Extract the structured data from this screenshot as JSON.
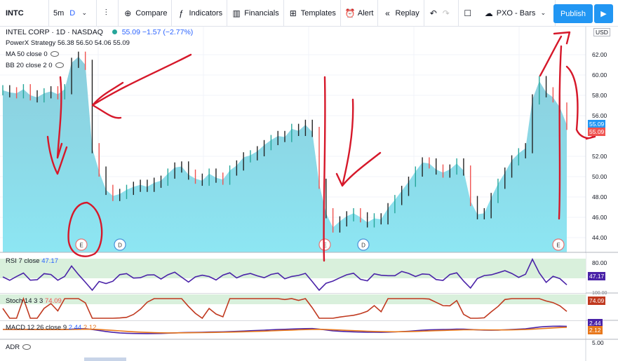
{
  "toolbar": {
    "symbol": "INTC",
    "interval": "5m",
    "interval_active": "D",
    "compare": "Compare",
    "indicators": "Indicators",
    "financials": "Financials",
    "templates": "Templates",
    "alert": "Alert",
    "replay": "Replay",
    "layout": "PXO - Bars",
    "publish": "Publish",
    "colors": {
      "accent": "#2196f3"
    }
  },
  "legend": {
    "title": "INTEL CORP · 1D · NASDAQ",
    "last": "55.09",
    "change": "−1.57 (−2.77%)",
    "strategy": "PowerX Strategy",
    "ohlc": "56.38 56.50 54.06 55.09",
    "ma": "MA 50 close 0",
    "bb": "BB 20 close 2 0"
  },
  "price_axis": {
    "currency": "USD",
    "ticks": [
      "62.00",
      "60.00",
      "58.00",
      "56.00",
      "52.00",
      "50.00",
      "48.00",
      "46.00",
      "44.00"
    ],
    "last_price": "55.09"
  },
  "events": [
    "E",
    "D",
    "E",
    "D",
    "E"
  ],
  "rsi": {
    "label": "RSI 7 close",
    "value": "47.17",
    "ticks": [
      "80.00",
      "47.17"
    ]
  },
  "stoch": {
    "label": "Stoch 14 3 3",
    "value": "74.09",
    "ticks": [
      "100.00",
      "74.09"
    ]
  },
  "macd": {
    "label": "MACD 12 26 close 9",
    "value1": "2.44",
    "value2": "2.12",
    "ticks": [
      "2.44",
      "2.12",
      "5.00"
    ]
  },
  "adr": {
    "label": "ADR"
  },
  "chart_data": {
    "type": "area",
    "series": [
      {
        "name": "INTC",
        "values": [
          58.5,
          58.3,
          58.2,
          58.6,
          58.0,
          57.8,
          58.2,
          58.4,
          58.1,
          58.6,
          61.2,
          61.8,
          61.0,
          52.8,
          50.5,
          48.7,
          48.1,
          48.3,
          48.7,
          49.0,
          49.2,
          49.0,
          49.4,
          49.6,
          50.3,
          50.9,
          51.0,
          50.2,
          49.8,
          49.6,
          50.3,
          49.9,
          49.7,
          50.6,
          51.1,
          51.9,
          52.1,
          52.5,
          53.1,
          53.6,
          54.0,
          53.9,
          54.7,
          54.5,
          55.1,
          54.4,
          49.3,
          46.4,
          45.0,
          45.6,
          46.1,
          46.4,
          46.0,
          45.5,
          45.9,
          45.8,
          46.9,
          47.7,
          48.6,
          49.5,
          50.5,
          51.4,
          51.3,
          50.7,
          50.4,
          50.7,
          51.3,
          50.6,
          47.6,
          46.3,
          46.4,
          47.9,
          49.3,
          50.4,
          51.6,
          52.3,
          52.8,
          57.6,
          59.4,
          58.3,
          57.8,
          56.8,
          55.1
        ]
      }
    ]
  }
}
